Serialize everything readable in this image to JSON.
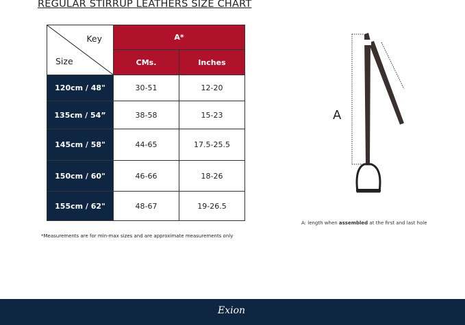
{
  "title": "REGULAR STIRRUP LEATHERS  SIZE CHART",
  "table": {
    "key_label": "Key",
    "size_label": "Size",
    "group_header": "A*",
    "columns": [
      "CMs.",
      "Inches"
    ],
    "rows": [
      {
        "size": "120cm / 48\"",
        "cms": "30-51",
        "inches": "12-20"
      },
      {
        "size": "135cm / 54”",
        "cms": "38-58",
        "inches": "15-23"
      },
      {
        "size": "145cm / 58\"",
        "cms": "44-65",
        "inches": "17.5-25.5"
      },
      {
        "size": "150cm / 60\"",
        "cms": "46-66",
        "inches": "18-26"
      },
      {
        "size": "155cm / 62\"",
        "cms": "48-67",
        "inches": "19-26.5"
      }
    ]
  },
  "note": "*Measurements are for min-max sizes and are approximate measurements only",
  "diagram": {
    "label": "A",
    "caption_pre": "A: length when ",
    "caption_bold": "assembled",
    "caption_post": " at the first and last hole"
  },
  "brand": "Exion",
  "colors": {
    "header_red": "#b0112b",
    "navy": "#0f2643"
  }
}
